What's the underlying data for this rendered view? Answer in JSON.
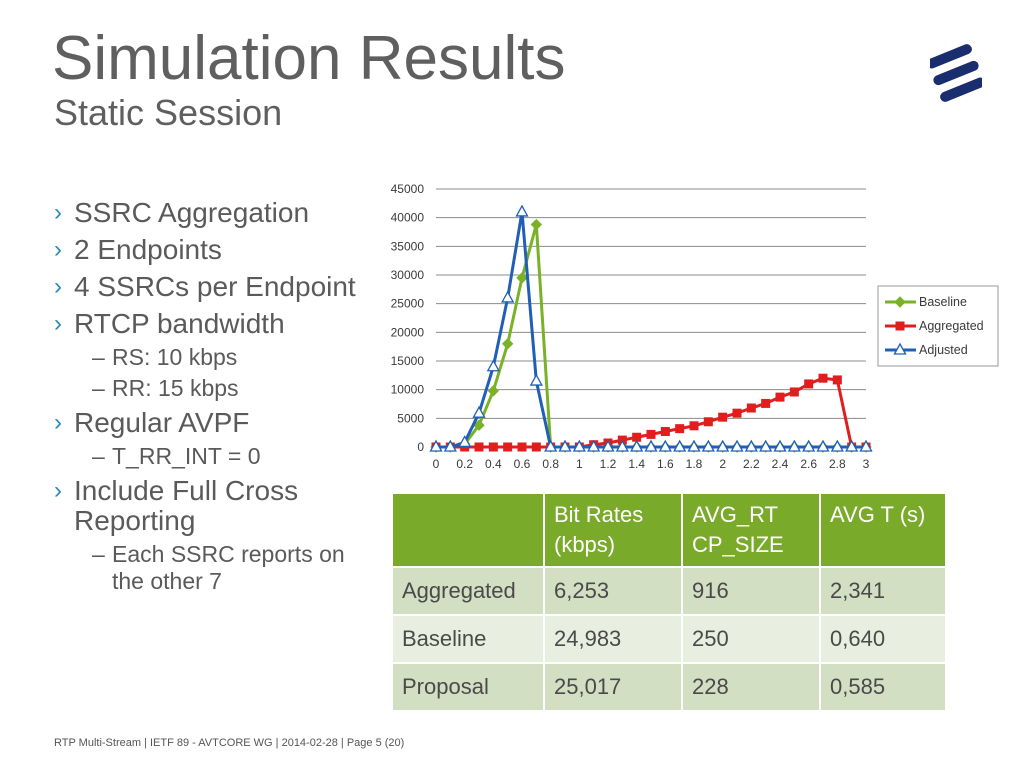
{
  "slide": {
    "title": "Simulation Results",
    "subtitle": "Static Session",
    "footer": "RTP Multi-Stream  |  IETF 89 - AVTCORE WG  |  2014-02-28  |  Page 5 (20)"
  },
  "bullets": [
    {
      "level": 1,
      "text": "SSRC Aggregation"
    },
    {
      "level": 1,
      "text": "2 Endpoints"
    },
    {
      "level": 1,
      "text": "4 SSRCs per Endpoint"
    },
    {
      "level": 1,
      "text": "RTCP bandwidth"
    },
    {
      "level": 2,
      "text": "RS: 10 kbps"
    },
    {
      "level": 2,
      "text": "RR: 15 kbps"
    },
    {
      "level": 1,
      "text": "Regular AVPF"
    },
    {
      "level": 2,
      "text": "T_RR_INT = 0"
    },
    {
      "level": 1,
      "text": "Include Full Cross Reporting"
    },
    {
      "level": 2,
      "text": "Each SSRC reports on the other 7"
    }
  ],
  "table": {
    "headers": [
      "",
      "Bit Rates (kbps)",
      "AVG_RT CP_SIZE",
      "AVG T (s)"
    ],
    "rows": [
      [
        "Aggregated",
        "6,253",
        "916",
        "2,341"
      ],
      [
        "Baseline",
        "24,983",
        "250",
        "0,640"
      ],
      [
        "Proposal",
        "25,017",
        "228",
        "0,585"
      ]
    ],
    "header_color": "#7AAA2A"
  },
  "logo": {
    "icon": "ericsson-logo-icon",
    "color": "#1a2d6e"
  },
  "chart_data": {
    "type": "line",
    "x": [
      0,
      0.1,
      0.2,
      0.3,
      0.4,
      0.5,
      0.6,
      0.7,
      0.8,
      0.9,
      1.0,
      1.1,
      1.2,
      1.3,
      1.4,
      1.5,
      1.6,
      1.7,
      1.8,
      1.9,
      2.0,
      2.1,
      2.2,
      2.3,
      2.4,
      2.5,
      2.6,
      2.7,
      2.8,
      2.9,
      3.0
    ],
    "x_tick_labels": [
      "0",
      "0.2",
      "0.4",
      "0.6",
      "0.8",
      "1",
      "1.2",
      "1.4",
      "1.6",
      "1.8",
      "2",
      "2.2",
      "2.4",
      "2.6",
      "2.8",
      "3"
    ],
    "ylim": [
      0,
      45000
    ],
    "y_ticks": [
      0,
      5000,
      10000,
      15000,
      20000,
      25000,
      30000,
      35000,
      40000,
      45000
    ],
    "grid": true,
    "legend_position": "right",
    "series": [
      {
        "name": "Baseline",
        "color": "#7ab227",
        "marker": "diamond",
        "values": [
          0,
          0,
          500,
          3800,
          9800,
          18000,
          29500,
          38800,
          0,
          0,
          0,
          0,
          0,
          0,
          0,
          0,
          0,
          0,
          0,
          0,
          0,
          0,
          0,
          0,
          0,
          0,
          0,
          0,
          0,
          0,
          0
        ]
      },
      {
        "name": "Aggregated",
        "color": "#e01e1e",
        "marker": "square",
        "values": [
          0,
          0,
          0,
          0,
          0,
          0,
          0,
          0,
          0,
          0,
          0,
          400,
          700,
          1200,
          1700,
          2200,
          2700,
          3200,
          3700,
          4400,
          5200,
          5900,
          6800,
          7600,
          8700,
          9600,
          11000,
          12000,
          11700,
          0,
          0
        ]
      },
      {
        "name": "Adjusted",
        "color": "#1f5fb5",
        "marker": "triangle",
        "values": [
          0,
          0,
          800,
          5900,
          14000,
          26000,
          41000,
          11500,
          0,
          0,
          0,
          0,
          0,
          0,
          0,
          0,
          0,
          0,
          0,
          0,
          0,
          0,
          0,
          0,
          0,
          0,
          0,
          0,
          0,
          0,
          0
        ]
      }
    ]
  }
}
